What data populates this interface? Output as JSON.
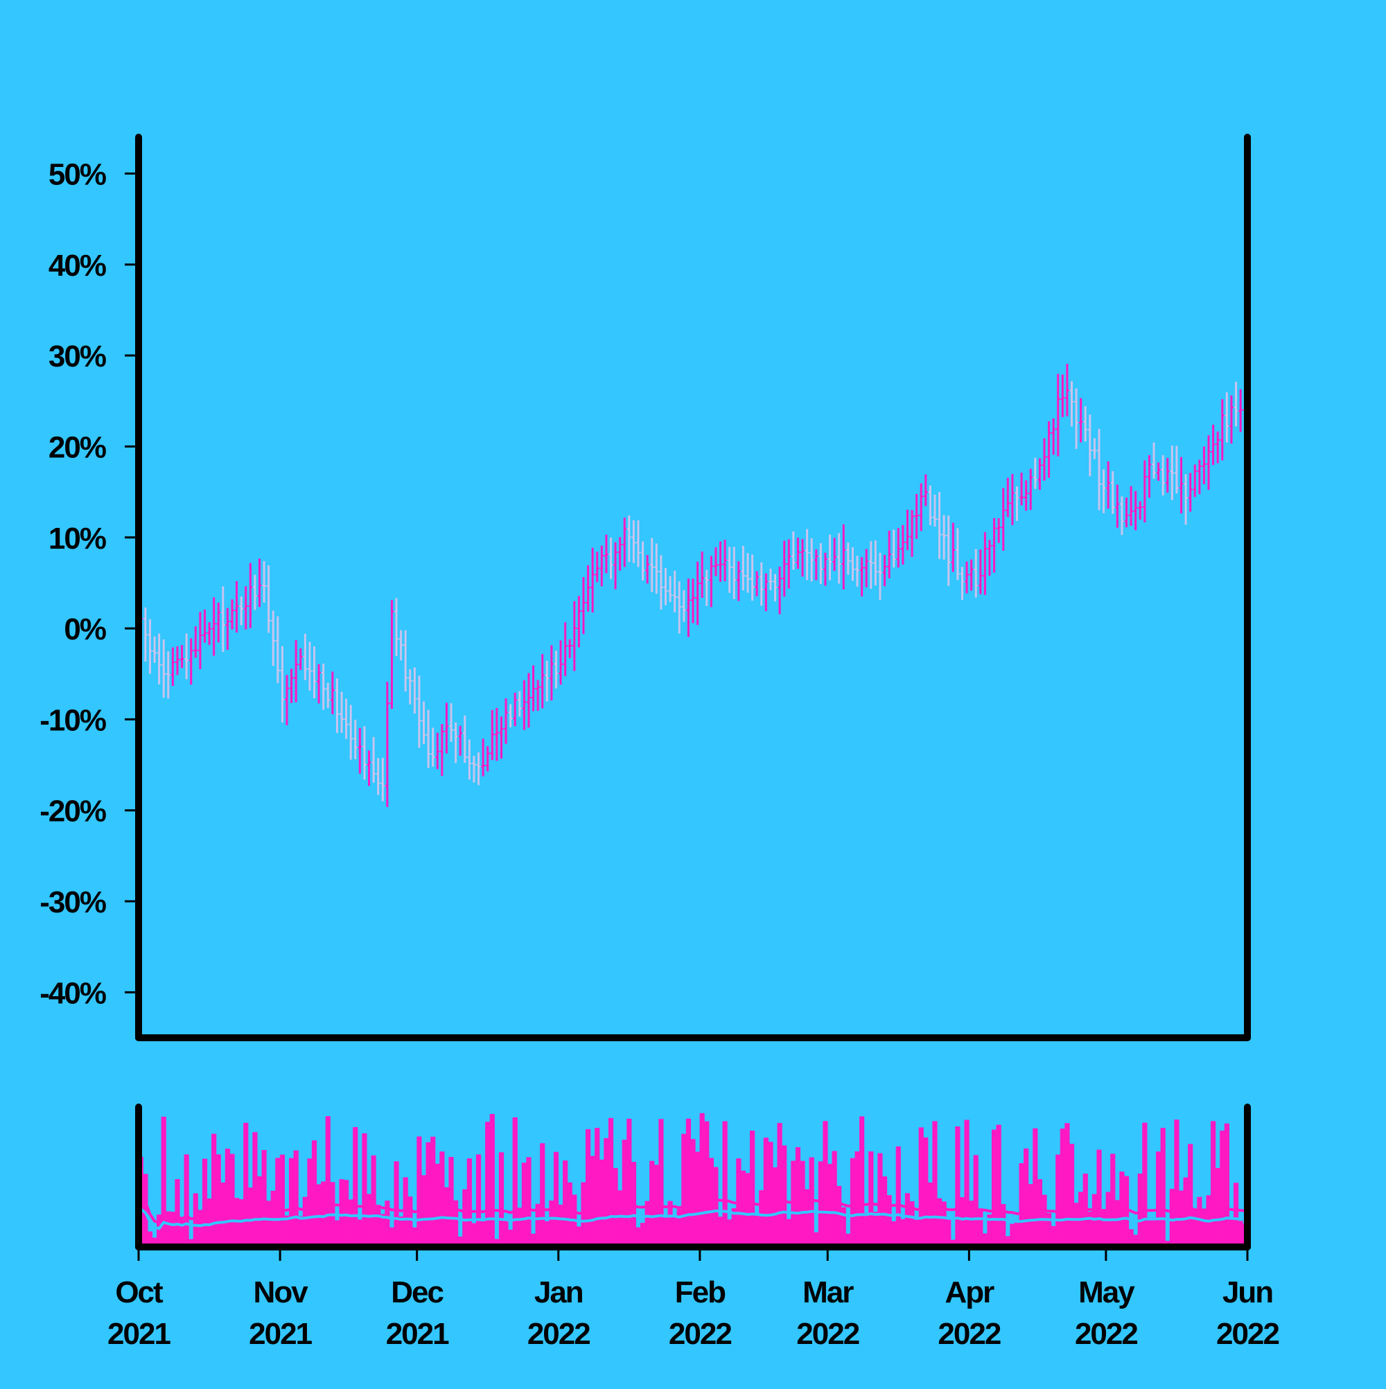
{
  "chart_data": {
    "type": "ohlc",
    "title": "",
    "ylabel": "",
    "xlabel": "",
    "ylim": [
      -45,
      54
    ],
    "y_ticks": [
      -40,
      -30,
      -20,
      -10,
      0,
      10,
      20,
      30,
      40,
      50
    ],
    "y_tick_labels": [
      "-40%",
      "-30%",
      "-20%",
      "-10%",
      "0%",
      "10%",
      "20%",
      "30%",
      "40%",
      "50%"
    ],
    "y_unit": "%",
    "x_start": "2021-10-01",
    "x_end": "2022-06-01",
    "x_ticks": [
      {
        "date": "2021-10-01",
        "month": "Oct",
        "year": "2021"
      },
      {
        "date": "2021-11-01",
        "month": "Nov",
        "year": "2021"
      },
      {
        "date": "2021-12-01",
        "month": "Dec",
        "year": "2021"
      },
      {
        "date": "2022-01-01",
        "month": "Jan",
        "year": "2022"
      },
      {
        "date": "2022-02-01",
        "month": "Feb",
        "year": "2022"
      },
      {
        "date": "2022-03-01",
        "month": "Mar",
        "year": "2022"
      },
      {
        "date": "2022-04-01",
        "month": "Apr",
        "year": "2022"
      },
      {
        "date": "2022-05-01",
        "month": "May",
        "year": "2022"
      },
      {
        "date": "2022-06-01",
        "month": "Jun",
        "year": "2022"
      }
    ],
    "close_anchors": [
      [
        "2021-10-01",
        0
      ],
      [
        "2021-10-04",
        -3
      ],
      [
        "2021-10-06",
        -5
      ],
      [
        "2021-10-12",
        -3
      ],
      [
        "2021-10-16",
        0
      ],
      [
        "2021-10-22",
        2
      ],
      [
        "2021-10-27",
        5
      ],
      [
        "2021-10-29",
        2
      ],
      [
        "2021-11-01",
        -8
      ],
      [
        "2021-11-05",
        -4
      ],
      [
        "2021-11-10",
        -6
      ],
      [
        "2021-11-15",
        -10
      ],
      [
        "2021-11-20",
        -15
      ],
      [
        "2021-11-23",
        -17
      ],
      [
        "2021-11-25",
        1
      ],
      [
        "2021-11-27",
        -3
      ],
      [
        "2021-12-01",
        -10
      ],
      [
        "2021-12-04",
        -14
      ],
      [
        "2021-12-07",
        -10
      ],
      [
        "2021-12-10",
        -12
      ],
      [
        "2021-12-13",
        -16
      ],
      [
        "2021-12-16",
        -13
      ],
      [
        "2021-12-22",
        -8
      ],
      [
        "2021-12-28",
        -6
      ],
      [
        "2022-01-01",
        -3
      ],
      [
        "2022-01-06",
        2
      ],
      [
        "2022-01-08",
        7
      ],
      [
        "2022-01-12",
        8
      ],
      [
        "2022-01-16",
        11
      ],
      [
        "2022-01-20",
        6
      ],
      [
        "2022-01-25",
        4
      ],
      [
        "2022-01-28",
        2
      ],
      [
        "2022-02-01",
        5
      ],
      [
        "2022-02-05",
        7
      ],
      [
        "2022-02-10",
        6
      ],
      [
        "2022-02-15",
        4
      ],
      [
        "2022-02-20",
        8
      ],
      [
        "2022-02-25",
        7
      ],
      [
        "2022-03-02",
        8
      ],
      [
        "2022-03-08",
        7
      ],
      [
        "2022-03-12",
        5
      ],
      [
        "2022-03-17",
        10
      ],
      [
        "2022-03-20",
        13
      ],
      [
        "2022-03-22",
        15
      ],
      [
        "2022-03-25",
        10
      ],
      [
        "2022-03-30",
        6
      ],
      [
        "2022-04-02",
        5
      ],
      [
        "2022-04-05",
        9
      ],
      [
        "2022-04-09",
        14
      ],
      [
        "2022-04-14",
        16
      ],
      [
        "2022-04-18",
        21
      ],
      [
        "2022-04-21",
        26
      ],
      [
        "2022-04-25",
        23
      ],
      [
        "2022-04-29",
        17
      ],
      [
        "2022-05-03",
        13
      ],
      [
        "2022-05-06",
        12
      ],
      [
        "2022-05-10",
        17
      ],
      [
        "2022-05-15",
        16
      ],
      [
        "2022-05-18",
        15
      ],
      [
        "2022-05-22",
        18
      ],
      [
        "2022-05-26",
        23
      ],
      [
        "2022-06-01",
        25
      ]
    ],
    "volume_ylim": [
      0,
      100
    ],
    "colors": {
      "background": "#33c6ff",
      "up": "#ff19c2",
      "down": "#c8c4ee",
      "volume": "#ff19c2",
      "volume_ma_long": "#ff19c2",
      "volume_ma_short": "#33c6ff",
      "axis": "#000000"
    }
  }
}
